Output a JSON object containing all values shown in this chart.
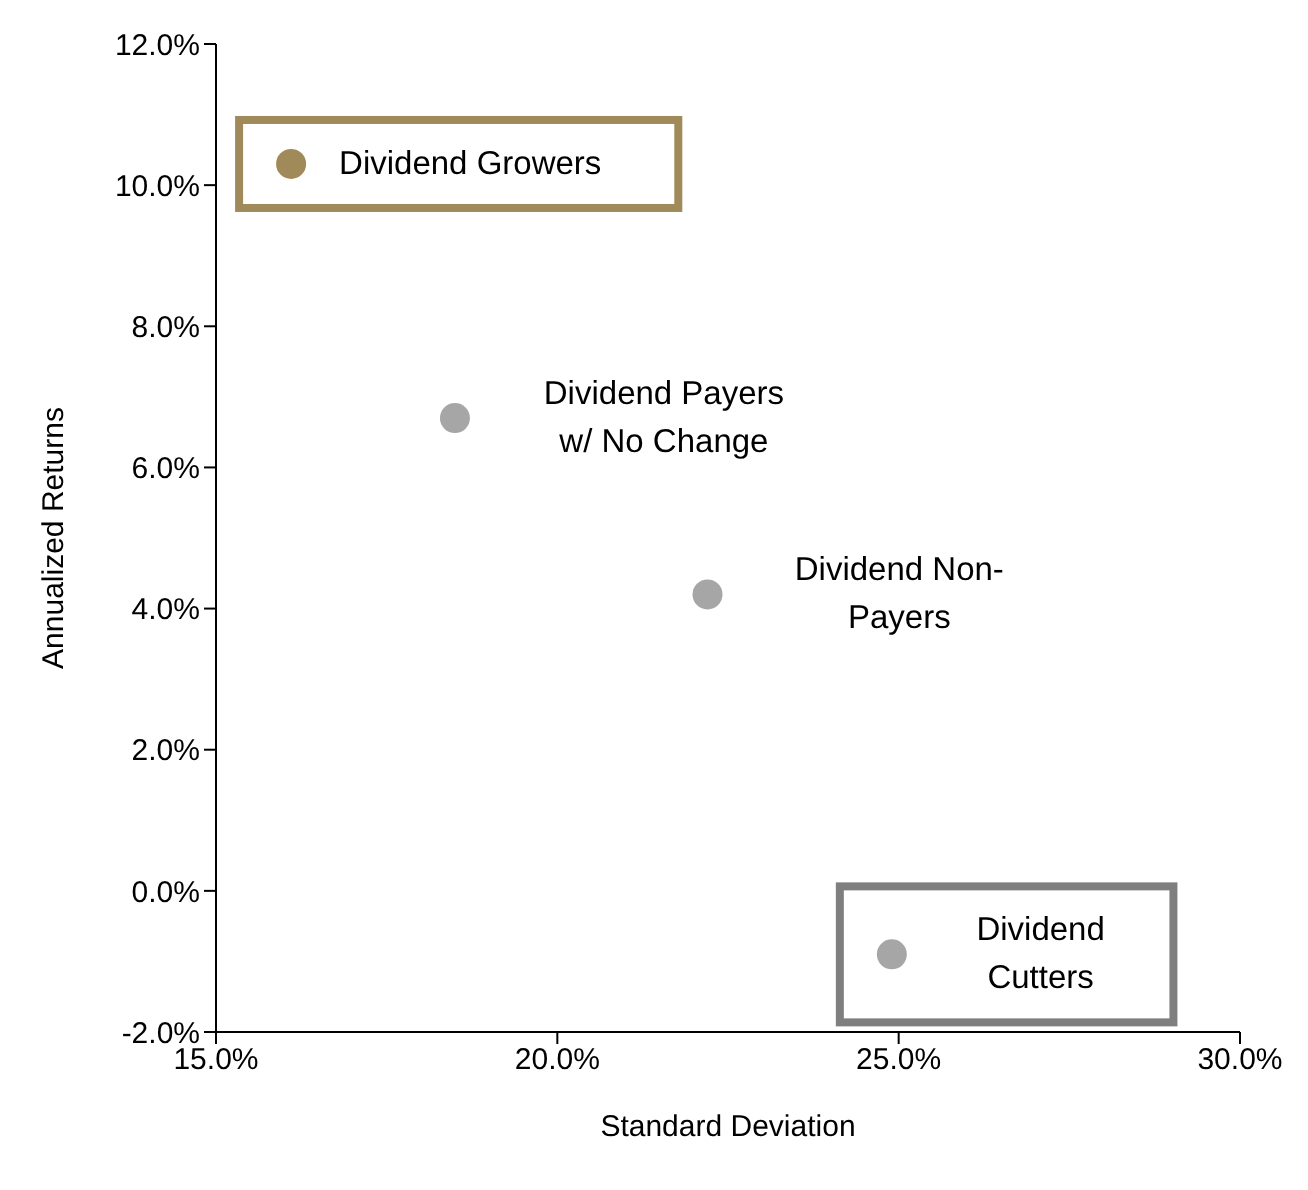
{
  "chart_data": {
    "type": "scatter",
    "xlabel": "Standard Deviation",
    "ylabel": "Annualized Returns",
    "xlim": [
      15,
      30
    ],
    "xticks": [
      {
        "value": 15,
        "label": "15.0%"
      },
      {
        "value": 20,
        "label": "20.0%"
      },
      {
        "value": 25,
        "label": "25.0%"
      },
      {
        "value": 30,
        "label": "30.0%"
      }
    ],
    "ylim": [
      -2,
      12
    ],
    "yticks": [
      {
        "value": -2,
        "label": "-2.0%"
      },
      {
        "value": 0,
        "label": "0.0%"
      },
      {
        "value": 2,
        "label": "2.0%"
      },
      {
        "value": 4,
        "label": "4.0%"
      },
      {
        "value": 6,
        "label": "6.0%"
      },
      {
        "value": 8,
        "label": "8.0%"
      },
      {
        "value": 10,
        "label": "10.0%"
      },
      {
        "value": 12,
        "label": "12.0%"
      }
    ],
    "grid": false,
    "legend": false,
    "marker": "circle",
    "series": [
      {
        "name": "Dividend Growers",
        "color": "#a08a5a",
        "x": [
          16.1
        ],
        "values": [
          10.3
        ]
      },
      {
        "name": "Dividend Payers\nw/ No Change",
        "color": "#a6a6a6",
        "x": [
          18.5
        ],
        "values": [
          6.7
        ]
      },
      {
        "name": "Dividend Non-\nPayers",
        "color": "#a6a6a6",
        "x": [
          22.2
        ],
        "values": [
          4.2
        ]
      },
      {
        "name": "Dividend\nCutters",
        "color": "#a6a6a6",
        "x": [
          24.9
        ],
        "values": [
          -0.9
        ]
      }
    ]
  }
}
